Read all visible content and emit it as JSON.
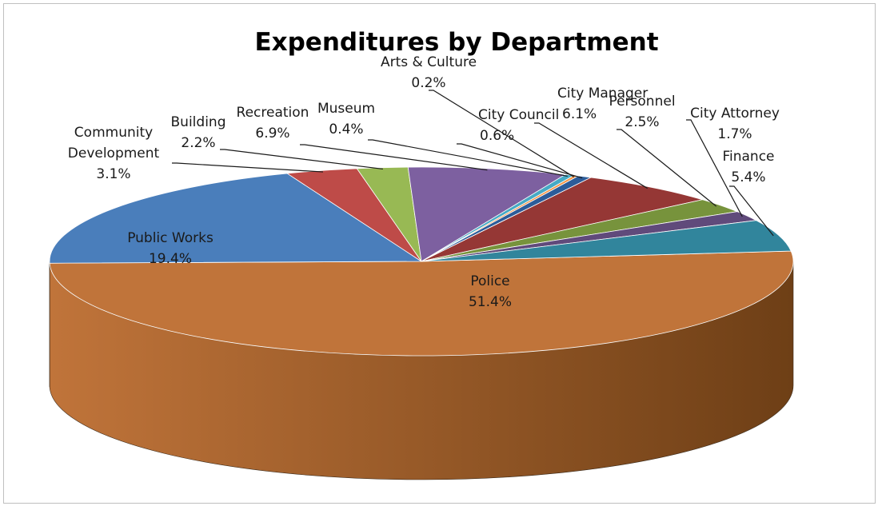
{
  "chart_data": {
    "type": "pie",
    "title": "Expenditures by Department",
    "slices": [
      {
        "name": "Police",
        "value": 51.4,
        "label": "51.4%",
        "color": "#C0743A",
        "side_color": "#6E3F16"
      },
      {
        "name": "Public Works",
        "value": 19.4,
        "label": "19.4%",
        "color": "#4A7EBB",
        "side_color": "#2E5585"
      },
      {
        "name": "Community Development",
        "label_lines": [
          "Community",
          "Development"
        ],
        "value": 3.1,
        "label": "3.1%",
        "color": "#BE4B48",
        "side_color": "#8A2E2B"
      },
      {
        "name": "Building",
        "value": 2.2,
        "label": "2.2%",
        "color": "#98B954",
        "side_color": "#6A8537"
      },
      {
        "name": "Recreation",
        "value": 6.9,
        "label": "6.9%",
        "color": "#7D60A0",
        "side_color": "#573F72"
      },
      {
        "name": "Museum",
        "value": 0.4,
        "label": "0.4%",
        "color": "#46AAC5",
        "side_color": "#2D7A8F"
      },
      {
        "name": "Arts & Culture",
        "value": 0.2,
        "label": "0.2%",
        "color": "#F79646",
        "side_color": "#B86A2C"
      },
      {
        "name": "City Council",
        "value": 0.6,
        "label": "0.6%",
        "color": "#2C5C99",
        "side_color": "#1C3D66"
      },
      {
        "name": "City Manager",
        "value": 6.1,
        "label": "6.1%",
        "color": "#953735",
        "side_color": "#6A2523"
      },
      {
        "name": "Personnel",
        "value": 2.5,
        "label": "2.5%",
        "color": "#77933C",
        "side_color": "#536A28"
      },
      {
        "name": "City Attorney",
        "value": 1.7,
        "label": "1.7%",
        "color": "#604A7B",
        "side_color": "#433356"
      },
      {
        "name": "Finance",
        "value": 5.4,
        "label": "5.4%",
        "color": "#31859C",
        "side_color": "#215D6E"
      }
    ]
  }
}
